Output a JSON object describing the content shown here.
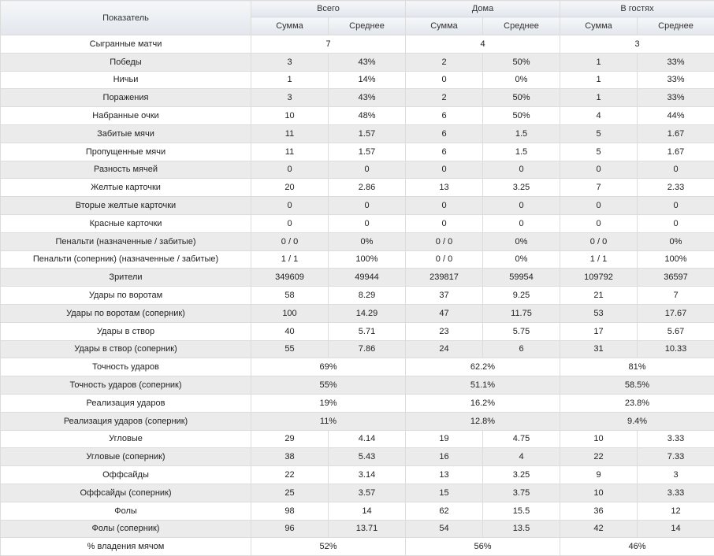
{
  "header": {
    "indicator": "Показатель",
    "groups": [
      "Всего",
      "Дома",
      "В гостях"
    ],
    "sub": [
      "Сумма",
      "Среднее"
    ]
  },
  "rows": [
    {
      "label": "Сыгранные матчи",
      "merged": true,
      "cells": [
        "7",
        "4",
        "3"
      ]
    },
    {
      "label": "Победы",
      "cells": [
        "3",
        "43%",
        "2",
        "50%",
        "1",
        "33%"
      ]
    },
    {
      "label": "Ничьи",
      "cells": [
        "1",
        "14%",
        "0",
        "0%",
        "1",
        "33%"
      ]
    },
    {
      "label": "Поражения",
      "cells": [
        "3",
        "43%",
        "2",
        "50%",
        "1",
        "33%"
      ]
    },
    {
      "label": "Набранные очки",
      "cells": [
        "10",
        "48%",
        "6",
        "50%",
        "4",
        "44%"
      ]
    },
    {
      "label": "Забитые мячи",
      "cells": [
        "11",
        "1.57",
        "6",
        "1.5",
        "5",
        "1.67"
      ]
    },
    {
      "label": "Пропущенные мячи",
      "cells": [
        "11",
        "1.57",
        "6",
        "1.5",
        "5",
        "1.67"
      ]
    },
    {
      "label": "Разность мячей",
      "cells": [
        "0",
        "0",
        "0",
        "0",
        "0",
        "0"
      ]
    },
    {
      "label": "Желтые карточки",
      "cells": [
        "20",
        "2.86",
        "13",
        "3.25",
        "7",
        "2.33"
      ]
    },
    {
      "label": "Вторые желтые карточки",
      "cells": [
        "0",
        "0",
        "0",
        "0",
        "0",
        "0"
      ]
    },
    {
      "label": "Красные карточки",
      "cells": [
        "0",
        "0",
        "0",
        "0",
        "0",
        "0"
      ]
    },
    {
      "label": "Пенальти (назначенные / забитые)",
      "cells": [
        "0 / 0",
        "0%",
        "0 / 0",
        "0%",
        "0 / 0",
        "0%"
      ]
    },
    {
      "label": "Пенальти (соперник) (назначенные / забитые)",
      "cells": [
        "1 / 1",
        "100%",
        "0 / 0",
        "0%",
        "1 / 1",
        "100%"
      ]
    },
    {
      "label": "Зрители",
      "cells": [
        "349609",
        "49944",
        "239817",
        "59954",
        "109792",
        "36597"
      ]
    },
    {
      "label": "Удары по воротам",
      "cells": [
        "58",
        "8.29",
        "37",
        "9.25",
        "21",
        "7"
      ]
    },
    {
      "label": "Удары по воротам (соперник)",
      "cells": [
        "100",
        "14.29",
        "47",
        "11.75",
        "53",
        "17.67"
      ]
    },
    {
      "label": "Удары в створ",
      "cells": [
        "40",
        "5.71",
        "23",
        "5.75",
        "17",
        "5.67"
      ]
    },
    {
      "label": "Удары в створ (соперник)",
      "cells": [
        "55",
        "7.86",
        "24",
        "6",
        "31",
        "10.33"
      ]
    },
    {
      "label": "Точность ударов",
      "merged": true,
      "cells": [
        "69%",
        "62.2%",
        "81%"
      ]
    },
    {
      "label": "Точность ударов (соперник)",
      "merged": true,
      "cells": [
        "55%",
        "51.1%",
        "58.5%"
      ]
    },
    {
      "label": "Реализация ударов",
      "merged": true,
      "cells": [
        "19%",
        "16.2%",
        "23.8%"
      ]
    },
    {
      "label": "Реализация ударов (соперник)",
      "merged": true,
      "cells": [
        "11%",
        "12.8%",
        "9.4%"
      ]
    },
    {
      "label": "Угловые",
      "cells": [
        "29",
        "4.14",
        "19",
        "4.75",
        "10",
        "3.33"
      ]
    },
    {
      "label": "Угловые (соперник)",
      "cells": [
        "38",
        "5.43",
        "16",
        "4",
        "22",
        "7.33"
      ]
    },
    {
      "label": "Оффсайды",
      "cells": [
        "22",
        "3.14",
        "13",
        "3.25",
        "9",
        "3"
      ]
    },
    {
      "label": "Оффсайды (соперник)",
      "cells": [
        "25",
        "3.57",
        "15",
        "3.75",
        "10",
        "3.33"
      ]
    },
    {
      "label": "Фолы",
      "cells": [
        "98",
        "14",
        "62",
        "15.5",
        "36",
        "12"
      ]
    },
    {
      "label": "Фолы (соперник)",
      "cells": [
        "96",
        "13.71",
        "54",
        "13.5",
        "42",
        "14"
      ]
    },
    {
      "label": "% владения мячом",
      "merged": true,
      "cells": [
        "52%",
        "56%",
        "46%"
      ]
    }
  ]
}
